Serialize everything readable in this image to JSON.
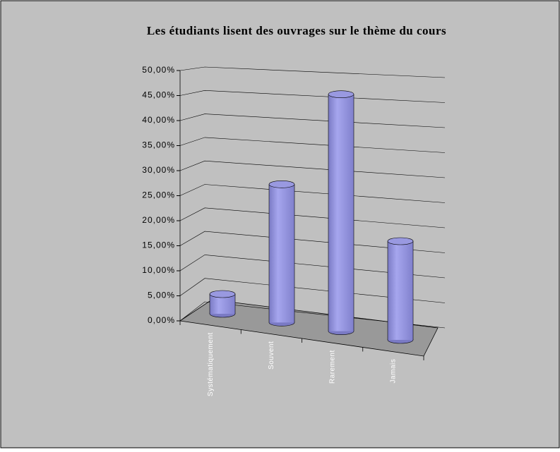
{
  "chart_data": {
    "type": "bar3d",
    "title": "Les étudiants lisent des ouvrages sur le thème du cours",
    "categories": [
      "Systématiquement",
      "Souvent",
      "Rarement",
      "Jamais"
    ],
    "values": [
      4,
      28,
      48,
      20
    ],
    "color": "#9999e0",
    "ylim": [
      0,
      50
    ],
    "yticks": [
      {
        "value": 0,
        "label": "0,00%"
      },
      {
        "value": 5,
        "label": "5,00%"
      },
      {
        "value": 10,
        "label": "10,00%"
      },
      {
        "value": 15,
        "label": "15,00%"
      },
      {
        "value": 20,
        "label": "20,00%"
      },
      {
        "value": 25,
        "label": "25,00%"
      },
      {
        "value": 30,
        "label": "30,00%"
      },
      {
        "value": 35,
        "label": "35,00%"
      },
      {
        "value": 40,
        "label": "40,00%"
      },
      {
        "value": 45,
        "label": "45,00%"
      },
      {
        "value": 50,
        "label": "50,00%"
      }
    ],
    "grid": true
  }
}
